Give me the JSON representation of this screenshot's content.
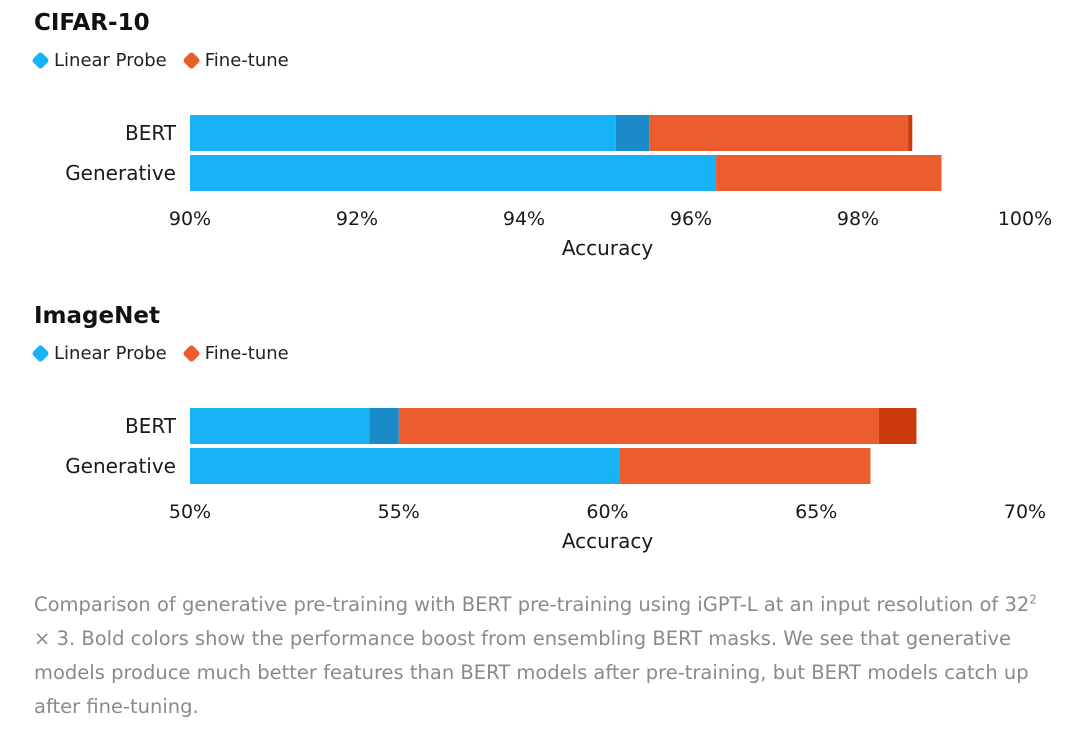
{
  "colors": {
    "linear_probe": "#17b3f6",
    "linear_probe_boost": "#1a8ac8",
    "fine_tune": "#ec5d2e",
    "fine_tune_boost": "#cc3a0c",
    "text": "#1a1a1a",
    "caption": "#8a8a8a"
  },
  "chart_data": [
    {
      "type": "bar",
      "orientation": "horizontal",
      "stacked": "overlay",
      "title": "CIFAR-10",
      "legend": [
        "Linear Probe",
        "Fine-tune"
      ],
      "xlabel": "Accuracy",
      "xlim": [
        90,
        100
      ],
      "ticks": [
        90,
        92,
        94,
        96,
        98,
        100
      ],
      "tick_labels": [
        "90%",
        "92%",
        "94%",
        "96%",
        "98%",
        "100%"
      ],
      "categories": [
        "BERT",
        "Generative"
      ],
      "series": [
        {
          "name": "Linear Probe",
          "values": [
            95.1,
            96.3
          ]
        },
        {
          "name": "Linear Probe (ensembled BERT masks)",
          "values": [
            95.5,
            null
          ]
        },
        {
          "name": "Fine-tune",
          "values": [
            98.6,
            99.0
          ]
        },
        {
          "name": "Fine-tune (ensembled BERT masks)",
          "values": [
            98.65,
            null
          ]
        }
      ]
    },
    {
      "type": "bar",
      "orientation": "horizontal",
      "stacked": "overlay",
      "title": "ImageNet",
      "legend": [
        "Linear Probe",
        "Fine-tune"
      ],
      "xlabel": "Accuracy",
      "xlim": [
        50,
        70
      ],
      "ticks": [
        50,
        55,
        60,
        65,
        70
      ],
      "tick_labels": [
        "50%",
        "55%",
        "60%",
        "65%",
        "70%"
      ],
      "categories": [
        "BERT",
        "Generative"
      ],
      "series": [
        {
          "name": "Linear Probe",
          "values": [
            54.3,
            60.3
          ]
        },
        {
          "name": "Linear Probe (ensembled BERT masks)",
          "values": [
            55.0,
            null
          ]
        },
        {
          "name": "Fine-tune",
          "values": [
            66.5,
            66.3
          ]
        },
        {
          "name": "Fine-tune (ensembled BERT masks)",
          "values": [
            67.4,
            null
          ]
        }
      ]
    }
  ],
  "caption": {
    "part1": "Comparison of generative pre-training with BERT pre-training using iGPT-L at an input resolution of 32",
    "sup": "2",
    "part2": " × 3. Bold colors show the performance boost from ensembling BERT masks. We see that generative models produce much better features than BERT models after pre-training, but BERT models catch up after fine-tuning."
  }
}
